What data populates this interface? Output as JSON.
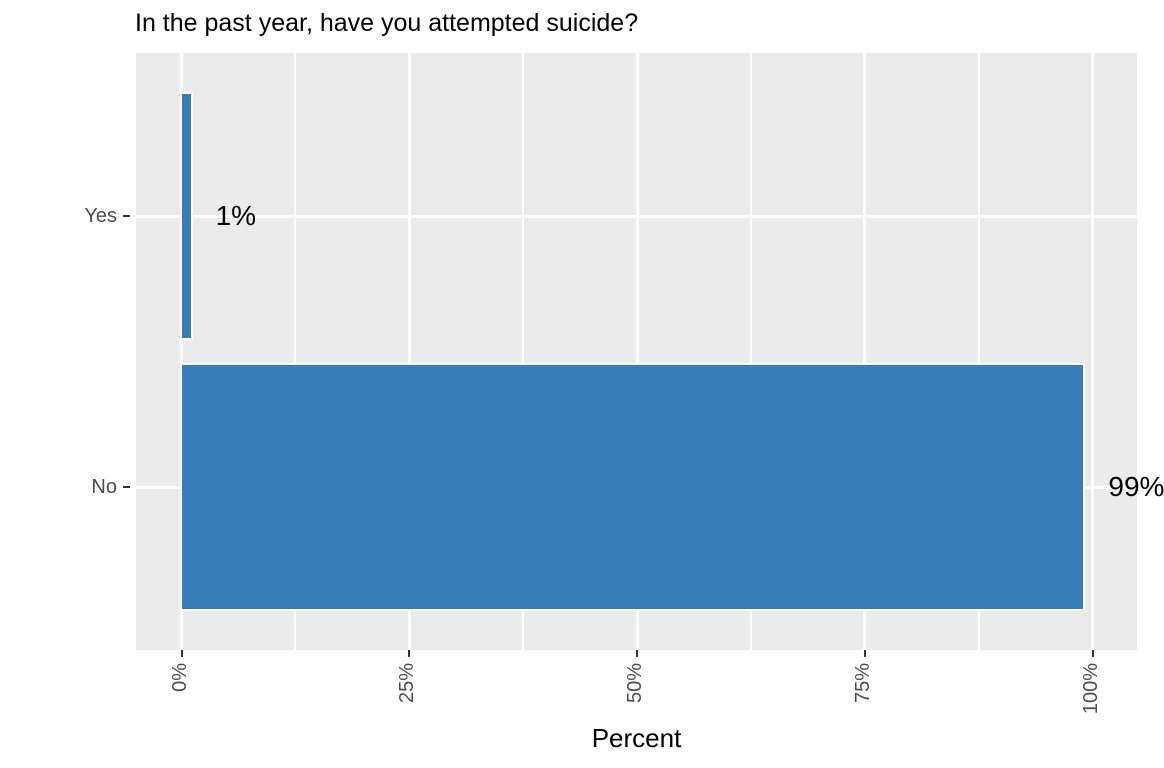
{
  "chart_data": {
    "type": "bar",
    "orientation": "horizontal",
    "title": "In the past year, have you attempted suicide?",
    "xlabel": "Percent",
    "ylabel": "",
    "categories": [
      "Yes",
      "No"
    ],
    "values": [
      1,
      99
    ],
    "value_labels": [
      "1%",
      "99%"
    ],
    "x_ticks": [
      "0%",
      "25%",
      "50%",
      "75%",
      "100%"
    ],
    "x_tick_values": [
      0,
      25,
      50,
      75,
      100
    ],
    "x_minor_tick_values": [
      12.5,
      37.5,
      62.5,
      87.5
    ],
    "xlim": [
      0,
      100
    ],
    "grid": true,
    "legend": false,
    "colors": {
      "bar_fill": "#377EB8",
      "bar_border": "#FFFFFF",
      "panel_background": "#EBEBEB",
      "gridline": "#FFFFFF",
      "tick_label": "#4D4D4D",
      "tick_mark": "#333333",
      "title_text": "#000000",
      "page_background": "#FFFFFF"
    }
  }
}
